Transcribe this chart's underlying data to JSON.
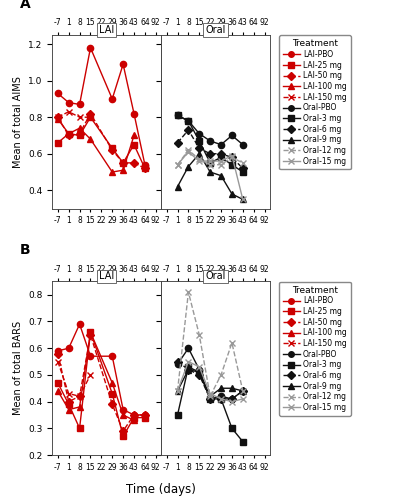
{
  "panel_A": {
    "ylabel": "Mean of total AIMS",
    "ylim": [
      0.3,
      1.25
    ],
    "yticks": [
      0.4,
      0.6,
      0.8,
      1.0,
      1.2
    ],
    "LAI": {
      "LAI-PBO": {
        "x": [
          0,
          1,
          2,
          3,
          5,
          6,
          7,
          8
        ],
        "y": [
          0.93,
          0.88,
          0.87,
          1.18,
          0.9,
          1.09,
          0.82,
          0.54
        ]
      },
      "LAI-25": {
        "x": [
          0,
          1,
          2,
          3,
          5,
          6,
          7,
          8
        ],
        "y": [
          0.66,
          0.71,
          0.7,
          0.8,
          0.63,
          0.55,
          0.65,
          0.52
        ]
      },
      "LAI-50": {
        "x": [
          0,
          1,
          2,
          3,
          5,
          6,
          7,
          8
        ],
        "y": [
          0.8,
          0.7,
          0.71,
          0.82,
          0.62,
          0.55,
          0.55,
          0.52
        ]
      },
      "LAI-100": {
        "x": [
          0,
          1,
          2,
          3,
          5,
          6,
          7
        ],
        "y": [
          0.79,
          0.71,
          0.74,
          0.68,
          0.5,
          0.51,
          0.7
        ]
      },
      "LAI-150": {
        "x": [
          0,
          1,
          2,
          3
        ],
        "y": [
          0.8,
          0.83,
          0.8,
          0.8
        ]
      }
    },
    "Oral": {
      "Oral-PBO": {
        "x": [
          1,
          2,
          3,
          4,
          5,
          6,
          7
        ],
        "y": [
          0.81,
          0.78,
          0.71,
          0.67,
          0.65,
          0.7,
          0.65
        ]
      },
      "Oral-3": {
        "x": [
          1,
          2,
          3,
          4,
          5,
          6,
          7
        ],
        "y": [
          0.81,
          0.78,
          0.67,
          0.55,
          0.58,
          0.54,
          0.5
        ]
      },
      "Oral-6": {
        "x": [
          1,
          2,
          3,
          4,
          5,
          6,
          7
        ],
        "y": [
          0.66,
          0.73,
          0.63,
          0.6,
          0.6,
          0.58,
          0.52
        ]
      },
      "Oral-9": {
        "x": [
          1,
          2,
          3,
          4,
          5,
          6,
          7
        ],
        "y": [
          0.42,
          0.53,
          0.6,
          0.5,
          0.48,
          0.38,
          0.35
        ]
      },
      "Oral-12": {
        "x": [
          1,
          2,
          3,
          4,
          5,
          6,
          7
        ],
        "y": [
          0.54,
          0.62,
          0.57,
          0.54,
          0.54,
          0.58,
          0.55
        ]
      },
      "Oral-15": {
        "x": [
          1,
          2,
          3,
          4,
          5,
          6,
          7
        ],
        "y": [
          0.54,
          0.61,
          0.56,
          0.56,
          0.56,
          0.59,
          0.35
        ]
      }
    }
  },
  "panel_B": {
    "ylabel": "Mean of total BARS",
    "ylim": [
      0.2,
      0.85
    ],
    "yticks": [
      0.2,
      0.3,
      0.4,
      0.5,
      0.6,
      0.7,
      0.8
    ],
    "LAI": {
      "LAI-PBO": {
        "x": [
          0,
          1,
          2,
          3,
          5,
          6,
          7,
          8
        ],
        "y": [
          0.59,
          0.6,
          0.69,
          0.57,
          0.57,
          0.37,
          0.35,
          0.35
        ]
      },
      "LAI-25": {
        "x": [
          0,
          1,
          2,
          3,
          5,
          6,
          7,
          8
        ],
        "y": [
          0.47,
          0.39,
          0.3,
          0.66,
          0.43,
          0.27,
          0.34,
          0.34
        ]
      },
      "LAI-50": {
        "x": [
          0,
          1,
          2,
          3,
          5,
          6,
          7,
          8
        ],
        "y": [
          0.58,
          0.4,
          0.42,
          0.65,
          0.39,
          0.29,
          0.35,
          0.35
        ]
      },
      "LAI-100": {
        "x": [
          0,
          1,
          2,
          3,
          5,
          6,
          7
        ],
        "y": [
          0.44,
          0.37,
          0.38,
          0.66,
          0.47,
          0.35,
          0.33
        ]
      },
      "LAI-150": {
        "x": [
          0,
          1,
          2,
          3
        ],
        "y": [
          0.55,
          0.43,
          0.42,
          0.5
        ]
      }
    },
    "Oral": {
      "Oral-PBO": {
        "x": [
          1,
          2,
          3,
          4,
          5,
          6,
          7
        ],
        "y": [
          0.54,
          0.6,
          0.52,
          0.41,
          0.42,
          0.41,
          0.44
        ]
      },
      "Oral-3": {
        "x": [
          1,
          2,
          3,
          4,
          5,
          6,
          7
        ],
        "y": [
          0.35,
          0.53,
          0.51,
          0.41,
          0.41,
          0.3,
          0.25
        ]
      },
      "Oral-6": {
        "x": [
          1,
          2,
          3,
          4,
          5,
          6,
          7
        ],
        "y": [
          0.55,
          0.52,
          0.5,
          0.41,
          0.41,
          0.41,
          0.44
        ]
      },
      "Oral-9": {
        "x": [
          1,
          2,
          3,
          4,
          5,
          6,
          7
        ],
        "y": [
          0.44,
          0.52,
          0.51,
          0.42,
          0.45,
          0.45,
          0.44
        ]
      },
      "Oral-12": {
        "x": [
          1,
          2,
          3,
          4,
          5,
          6,
          7
        ],
        "y": [
          0.44,
          0.81,
          0.65,
          0.42,
          0.5,
          0.62,
          0.44
        ]
      },
      "Oral-15": {
        "x": [
          1,
          2,
          3,
          4,
          5,
          6,
          7
        ],
        "y": [
          0.44,
          0.55,
          0.53,
          0.43,
          0.41,
          0.4,
          0.41
        ]
      }
    }
  },
  "xlabel": "Time (days)",
  "x_labels": [
    "-7",
    "1",
    "8",
    "15",
    "22",
    "29",
    "36",
    "43",
    "64",
    "92"
  ],
  "lai_order": [
    "LAI-PBO",
    "LAI-25",
    "LAI-50",
    "LAI-100",
    "LAI-150"
  ],
  "oral_order": [
    "Oral-PBO",
    "Oral-3",
    "Oral-6",
    "Oral-9",
    "Oral-12",
    "Oral-15"
  ],
  "legend_labels": [
    "LAI-PBO",
    "LAI-25 mg",
    "LAI-50 mg",
    "LAI-100 mg",
    "LAI-150 mg",
    "Oral-PBO",
    "Oral-3 mg",
    "Oral-6 mg",
    "Oral-9 mg",
    "Oral-12 mg",
    "Oral-15 mg"
  ],
  "red": "#CC0000",
  "black": "#111111",
  "lgray": "#999999"
}
